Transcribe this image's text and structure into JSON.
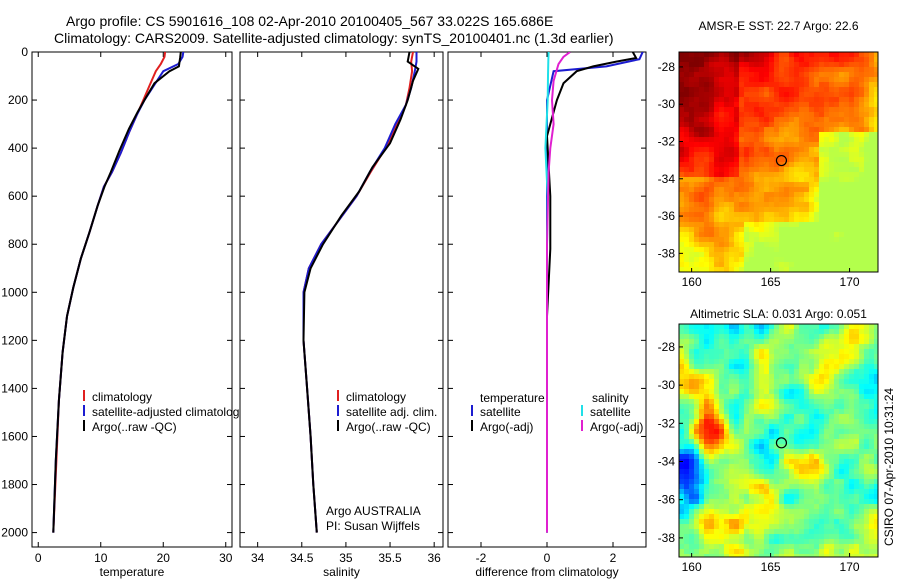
{
  "header": {
    "line1": "Argo profile: CS 5901616_108 02-Apr-2010 20100405_567 33.022S 165.686E",
    "line2": "Climatology: CARS2009. Satellite-adjusted climatology: synTS_20100401.nc (1.3d earlier)"
  },
  "side_note": "CSIRO 07-Apr-2010 10:31:24",
  "colors": {
    "clim": "#e02020",
    "sat": "#1c1cd0",
    "argo": "#000000",
    "sal_sat": "#20e0e8",
    "sal_argo": "#e020d0"
  },
  "profiles": [
    {
      "id": "temperature",
      "xlabel": "temperature",
      "xlim": [
        -1,
        31
      ],
      "xticks": [
        0,
        10,
        20,
        30
      ],
      "ylim": [
        0,
        2060
      ],
      "yticks": [
        0,
        200,
        400,
        600,
        800,
        1000,
        1200,
        1400,
        1600,
        1800,
        2000
      ],
      "legend": [
        "climatology",
        "satellite-adjusted climatology",
        "Argo(..raw -QC)"
      ],
      "series": [
        {
          "name": "climatology",
          "color": "clim",
          "points": [
            [
              20.3,
              0
            ],
            [
              20.2,
              20
            ],
            [
              19.6,
              50
            ],
            [
              18.8,
              80
            ],
            [
              17.8,
              140
            ],
            [
              16.8,
              200
            ],
            [
              15.8,
              260
            ],
            [
              14.6,
              330
            ],
            [
              13.2,
              420
            ],
            [
              11.8,
              500
            ],
            [
              10.5,
              560
            ],
            [
              9.5,
              640
            ],
            [
              8.2,
              750
            ],
            [
              6.8,
              860
            ],
            [
              5.6,
              980
            ],
            [
              4.6,
              1100
            ],
            [
              3.9,
              1250
            ],
            [
              3.3,
              1450
            ],
            [
              2.9,
              1700
            ],
            [
              2.4,
              2000
            ]
          ]
        },
        {
          "name": "satellite-adjusted climatology",
          "color": "sat",
          "points": [
            [
              23.2,
              0
            ],
            [
              23.1,
              20
            ],
            [
              22.4,
              50
            ],
            [
              20.0,
              80
            ],
            [
              18.5,
              140
            ],
            [
              17.0,
              200
            ],
            [
              15.8,
              260
            ],
            [
              14.6,
              330
            ],
            [
              13.2,
              420
            ],
            [
              11.8,
              500
            ],
            [
              10.5,
              560
            ],
            [
              9.5,
              640
            ],
            [
              8.2,
              750
            ],
            [
              6.8,
              860
            ],
            [
              5.6,
              980
            ],
            [
              4.6,
              1100
            ],
            [
              3.9,
              1250
            ],
            [
              3.3,
              1450
            ],
            [
              2.8,
              1700
            ],
            [
              2.4,
              2000
            ]
          ]
        },
        {
          "name": "Argo(..raw -QC)",
          "color": "argo",
          "points": [
            [
              22.8,
              0
            ],
            [
              22.7,
              25
            ],
            [
              22.5,
              60
            ],
            [
              21.0,
              80
            ],
            [
              18.6,
              130
            ],
            [
              17.2,
              190
            ],
            [
              15.9,
              250
            ],
            [
              14.5,
              320
            ],
            [
              13.0,
              410
            ],
            [
              11.6,
              500
            ],
            [
              10.6,
              560
            ],
            [
              9.5,
              640
            ],
            [
              8.2,
              750
            ],
            [
              6.8,
              860
            ],
            [
              5.6,
              980
            ],
            [
              4.6,
              1100
            ],
            [
              3.9,
              1250
            ],
            [
              3.3,
              1450
            ],
            [
              2.8,
              1700
            ],
            [
              2.4,
              2000
            ]
          ]
        }
      ]
    },
    {
      "id": "salinity",
      "xlabel": "salinity",
      "xlim": [
        33.8,
        36.1
      ],
      "xticks": [
        34,
        34.5,
        35,
        35.5,
        36
      ],
      "ylim": [
        0,
        2060
      ],
      "yticks": [],
      "legend": [
        "climatology",
        "satellite adj. clim.",
        "Argo(..raw -QC)"
      ],
      "note": [
        "Argo AUSTRALIA",
        "PI: Susan Wijffels"
      ],
      "series": [
        {
          "name": "climatology",
          "color": "clim",
          "points": [
            [
              35.76,
              0
            ],
            [
              35.74,
              40
            ],
            [
              35.75,
              80
            ],
            [
              35.72,
              150
            ],
            [
              35.68,
              220
            ],
            [
              35.58,
              300
            ],
            [
              35.45,
              400
            ],
            [
              35.28,
              500
            ],
            [
              35.12,
              600
            ],
            [
              34.92,
              700
            ],
            [
              34.72,
              800
            ],
            [
              34.58,
              900
            ],
            [
              34.52,
              1000
            ],
            [
              34.52,
              1200
            ],
            [
              34.56,
              1400
            ],
            [
              34.6,
              1600
            ],
            [
              34.63,
              1800
            ],
            [
              34.67,
              2000
            ]
          ]
        },
        {
          "name": "satellite adj. clim.",
          "color": "sat",
          "points": [
            [
              35.8,
              0
            ],
            [
              35.8,
              40
            ],
            [
              35.78,
              80
            ],
            [
              35.74,
              150
            ],
            [
              35.68,
              220
            ],
            [
              35.56,
              300
            ],
            [
              35.44,
              400
            ],
            [
              35.27,
              500
            ],
            [
              35.12,
              600
            ],
            [
              34.92,
              700
            ],
            [
              34.72,
              800
            ],
            [
              34.58,
              900
            ],
            [
              34.52,
              1000
            ],
            [
              34.52,
              1200
            ],
            [
              34.56,
              1400
            ],
            [
              34.6,
              1600
            ],
            [
              34.63,
              1800
            ],
            [
              34.67,
              2000
            ]
          ]
        },
        {
          "name": "Argo(..raw -QC)",
          "color": "argo",
          "points": [
            [
              35.72,
              0
            ],
            [
              35.7,
              40
            ],
            [
              35.82,
              70
            ],
            [
              35.76,
              120
            ],
            [
              35.7,
              200
            ],
            [
              35.62,
              280
            ],
            [
              35.5,
              380
            ],
            [
              35.3,
              480
            ],
            [
              35.15,
              580
            ],
            [
              34.95,
              680
            ],
            [
              34.74,
              800
            ],
            [
              34.6,
              900
            ],
            [
              34.53,
              1000
            ],
            [
              34.52,
              1200
            ],
            [
              34.56,
              1400
            ],
            [
              34.6,
              1600
            ],
            [
              34.63,
              1800
            ],
            [
              34.67,
              2000
            ]
          ]
        }
      ]
    },
    {
      "id": "difference",
      "xlabel": "difference from climatology",
      "xlim": [
        -3,
        3
      ],
      "xticks": [
        -2,
        0,
        2
      ],
      "ylim": [
        0,
        2060
      ],
      "yticks": [],
      "legend_title": [
        "temperature",
        "salinity"
      ],
      "legend": [
        "satellite",
        "Argo(-adj)",
        "satellite",
        "Argo(-adj)"
      ],
      "series": [
        {
          "name": "temperature satellite",
          "color": "sat",
          "points": [
            [
              2.9,
              0
            ],
            [
              2.8,
              30
            ],
            [
              1.8,
              60
            ],
            [
              0.2,
              80
            ],
            [
              0.0,
              200
            ],
            [
              0.0,
              500
            ],
            [
              0.0,
              800
            ],
            [
              0.0,
              1200
            ],
            [
              0.0,
              1600
            ],
            [
              0.0,
              2000
            ]
          ]
        },
        {
          "name": "temperature Argo(-adj)",
          "color": "argo",
          "points": [
            [
              2.6,
              0
            ],
            [
              2.7,
              25
            ],
            [
              2.1,
              40
            ],
            [
              1.4,
              60
            ],
            [
              0.9,
              80
            ],
            [
              0.5,
              130
            ],
            [
              0.3,
              200
            ],
            [
              0.0,
              350
            ],
            [
              0.1,
              600
            ],
            [
              0.1,
              820
            ],
            [
              0.0,
              1100
            ],
            [
              0.0,
              1600
            ],
            [
              0.0,
              2000
            ]
          ]
        },
        {
          "name": "salinity satellite",
          "color": "sal_sat",
          "points": [
            [
              0.05,
              0
            ],
            [
              0.04,
              40
            ],
            [
              0.03,
              100
            ],
            [
              0.02,
              200
            ],
            [
              -0.05,
              400
            ],
            [
              0.02,
              600
            ],
            [
              0.0,
              800
            ],
            [
              0.0,
              1200
            ],
            [
              0.0,
              1600
            ],
            [
              0.0,
              2000
            ]
          ]
        },
        {
          "name": "salinity Argo(-adj)",
          "color": "sal_argo",
          "points": [
            [
              0.7,
              0
            ],
            [
              0.5,
              20
            ],
            [
              0.35,
              50
            ],
            [
              0.2,
              120
            ],
            [
              0.15,
              200
            ],
            [
              0.2,
              300
            ],
            [
              0.1,
              400
            ],
            [
              0.05,
              500
            ],
            [
              0.0,
              800
            ],
            [
              0.0,
              1200
            ],
            [
              0.0,
              1600
            ],
            [
              0.0,
              2000
            ]
          ]
        }
      ]
    }
  ],
  "maps": [
    {
      "id": "sst-map",
      "title": "AMSR-E SST: 22.7 Argo: 22.6",
      "xlim": [
        159.2,
        171.8
      ],
      "ylim": [
        -39,
        -27.2
      ],
      "xticks": [
        160,
        165,
        170
      ],
      "yticks": [
        -28,
        -30,
        -32,
        -34,
        -36,
        -38
      ],
      "profile_location": [
        165.686,
        -33.022
      ]
    },
    {
      "id": "sla-map",
      "title": "Altimetric SLA: 0.031 Argo: 0.051",
      "xlim": [
        159.2,
        171.8
      ],
      "ylim": [
        -39,
        -26.8
      ],
      "xticks": [
        160,
        165,
        170
      ],
      "yticks": [
        -28,
        -30,
        -32,
        -34,
        -36,
        -38
      ],
      "profile_location": [
        165.686,
        -33.022
      ]
    }
  ]
}
